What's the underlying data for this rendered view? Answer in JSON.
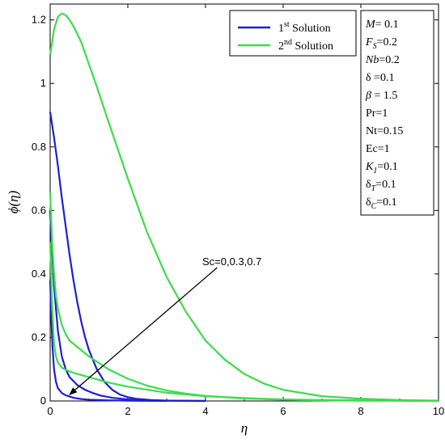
{
  "chart_data": {
    "type": "line",
    "title": "",
    "xlabel": "η",
    "ylabel": "ϕ(η)",
    "xlim": [
      0,
      10
    ],
    "ylim": [
      0,
      1.25
    ],
    "xticks": [
      0,
      2,
      4,
      6,
      8,
      10
    ],
    "yticks": [
      0,
      0.2,
      0.4,
      0.6,
      0.8,
      1,
      1.2
    ],
    "ytick_labels": [
      "0",
      "0.2",
      "0.4",
      "0.6",
      "0.8",
      "1",
      "1.2"
    ],
    "grid": false,
    "legend": {
      "placement": "top-right",
      "entries": [
        {
          "main": "1",
          "sup": "st",
          "rest": " Solution",
          "color": "#1f1fd6"
        },
        {
          "main": "2",
          "sup": "nd",
          "rest": " Solution",
          "color": "#3ddc4a"
        }
      ]
    },
    "parameters": [
      {
        "label": "M",
        "italic": true,
        "value": "= 0.1"
      },
      {
        "label": "F",
        "italic": true,
        "sub": "S",
        "value": "=0.2"
      },
      {
        "label": "Nb",
        "italic": true,
        "value": "=0.2"
      },
      {
        "label": "δ",
        "italic": false,
        "value": " =0.1"
      },
      {
        "label": "β",
        "italic": true,
        "value": " = 1.5"
      },
      {
        "label": "Pr",
        "italic": false,
        "value": "=1"
      },
      {
        "label": "Nt",
        "italic": false,
        "value": "=0.15"
      },
      {
        "label": "Ec",
        "italic": false,
        "value": "=1"
      },
      {
        "label": "K",
        "italic": true,
        "sub": "1",
        "value": "=0.1"
      },
      {
        "label": "δ",
        "italic": false,
        "sub": "T",
        "value": "=0.1"
      },
      {
        "label": "δ",
        "italic": false,
        "sub": "C",
        "value": "=0.1"
      }
    ],
    "annotation": {
      "text": "Sc=0,0.3,0.7",
      "arrow_from": [
        4.3,
        0.42
      ],
      "arrow_to": [
        0.5,
        0.02
      ]
    },
    "series": [
      {
        "solution": "1st",
        "sc": "0",
        "color": "#1f1fd6",
        "x": [
          0,
          0.1,
          0.2,
          0.3,
          0.4,
          0.5,
          0.6,
          0.7,
          0.8,
          0.9,
          1.0,
          1.2,
          1.4,
          1.6,
          1.8,
          2.0,
          2.2,
          2.6,
          3.0,
          4.0
        ],
        "y": [
          0.91,
          0.83,
          0.74,
          0.64,
          0.55,
          0.46,
          0.38,
          0.31,
          0.25,
          0.2,
          0.16,
          0.1,
          0.06,
          0.035,
          0.02,
          0.012,
          0.007,
          0.003,
          0.001,
          0
        ]
      },
      {
        "solution": "1st",
        "sc": "0.3",
        "color": "#1f1fd6",
        "x": [
          0,
          0.05,
          0.1,
          0.2,
          0.3,
          0.4,
          0.5,
          0.7,
          0.9,
          1.1,
          1.3,
          1.6,
          2.0,
          2.5,
          3.0,
          4.0
        ],
        "y": [
          0.6,
          0.47,
          0.36,
          0.22,
          0.14,
          0.1,
          0.075,
          0.05,
          0.035,
          0.025,
          0.017,
          0.01,
          0.005,
          0.002,
          0.001,
          0
        ]
      },
      {
        "solution": "1st",
        "sc": "0.7",
        "color": "#1f1fd6",
        "x": [
          0,
          0.03,
          0.06,
          0.1,
          0.15,
          0.2,
          0.3,
          0.4,
          0.6,
          0.8,
          1.0,
          1.5,
          2.0,
          3.0
        ],
        "y": [
          0.38,
          0.26,
          0.17,
          0.1,
          0.06,
          0.04,
          0.025,
          0.018,
          0.01,
          0.006,
          0.004,
          0.002,
          0.001,
          0
        ]
      },
      {
        "solution": "2nd",
        "sc": "0",
        "color": "#3ddc4a",
        "x": [
          0,
          0.1,
          0.2,
          0.3,
          0.4,
          0.5,
          0.6,
          0.8,
          1.0,
          1.2,
          1.5,
          2.0,
          2.5,
          3.0,
          3.5,
          4.0,
          4.5,
          5.0,
          5.5,
          6.0,
          7.0,
          8.0,
          9.0,
          10.0
        ],
        "y": [
          1.09,
          1.17,
          1.21,
          1.22,
          1.215,
          1.2,
          1.18,
          1.13,
          1.06,
          0.99,
          0.88,
          0.7,
          0.53,
          0.39,
          0.28,
          0.19,
          0.13,
          0.085,
          0.055,
          0.035,
          0.015,
          0.007,
          0.003,
          0.001
        ]
      },
      {
        "solution": "2nd",
        "sc": "0.3",
        "color": "#3ddc4a",
        "x": [
          0,
          0.05,
          0.1,
          0.15,
          0.2,
          0.3,
          0.4,
          0.5,
          0.7,
          1.0,
          1.5,
          2.0,
          2.5,
          3.0,
          3.5,
          4.0,
          5.0,
          6.0,
          7.0,
          8.0,
          9.0,
          10.0
        ],
        "y": [
          0.66,
          0.5,
          0.4,
          0.33,
          0.29,
          0.24,
          0.21,
          0.19,
          0.17,
          0.14,
          0.1,
          0.07,
          0.048,
          0.033,
          0.023,
          0.016,
          0.008,
          0.004,
          0.002,
          0.001,
          0.0005,
          0
        ]
      },
      {
        "solution": "2nd",
        "sc": "0.7",
        "color": "#3ddc4a",
        "x": [
          0,
          0.05,
          0.1,
          0.15,
          0.2,
          0.3,
          0.4,
          0.5,
          0.7,
          1.0,
          1.5,
          2.0,
          3.0,
          4.0,
          5.0,
          6.0,
          7.0,
          8.0,
          10.0
        ],
        "y": [
          0.5,
          0.3,
          0.18,
          0.14,
          0.12,
          0.105,
          0.098,
          0.093,
          0.085,
          0.075,
          0.058,
          0.045,
          0.026,
          0.015,
          0.009,
          0.005,
          0.003,
          0.002,
          0.001
        ]
      }
    ]
  }
}
